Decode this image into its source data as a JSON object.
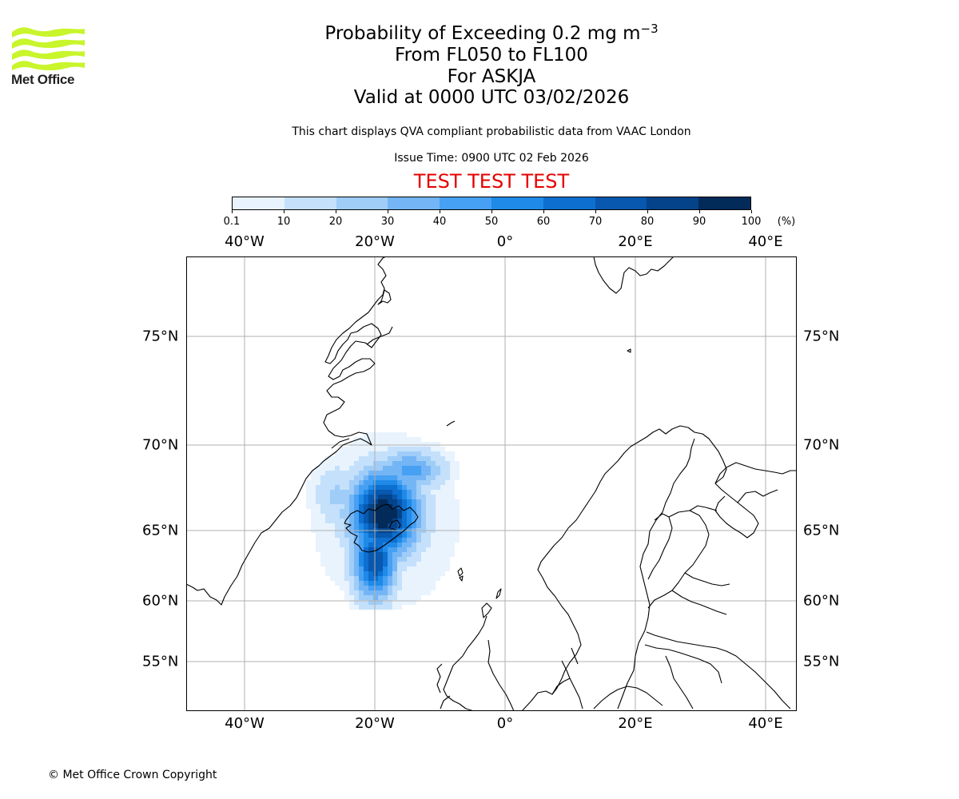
{
  "logo": {
    "text": "Met Office",
    "icon": "met-office-wave-logo",
    "color": "#c8f52b"
  },
  "header": {
    "title_prefix": "Probability of Exceeding 0.2 mg m",
    "title_exponent": "−3",
    "level_range": "From FL050 to FL100",
    "volcano": "For ASKJA",
    "valid_time": "Valid at 0000 UTC 03/02/2026",
    "description": "This chart displays QVA compliant probabilistic data from VAAC London",
    "issue_time": "Issue Time: 0900 UTC 02 Feb 2026",
    "test_banner": "TEST TEST TEST",
    "test_color": "#e50000"
  },
  "colorbar": {
    "unit": "(%)",
    "ticks": [
      "0.1",
      "10",
      "20",
      "30",
      "40",
      "50",
      "60",
      "70",
      "80",
      "90",
      "100"
    ],
    "colors": [
      "#e8f3fe",
      "#c4e0fb",
      "#9fcdf8",
      "#74b5f5",
      "#46a0f3",
      "#1f8ae8",
      "#0d6fd0",
      "#0758ae",
      "#04438a",
      "#022b5a"
    ]
  },
  "map": {
    "lon_labels": [
      "40°W",
      "20°W",
      "0°",
      "20°E",
      "40°E"
    ],
    "lat_labels": [
      "75°N",
      "70°N",
      "65°N",
      "60°N",
      "55°N"
    ],
    "lon_range_deg": [
      -49,
      45
    ],
    "lat_range_deg": [
      51.4,
      77.9
    ],
    "grid": true,
    "plume_level": "max probability above 90% centred over Iceland near 65°N 17°W"
  },
  "footer": {
    "copyright": "© Met Office Crown Copyright"
  }
}
